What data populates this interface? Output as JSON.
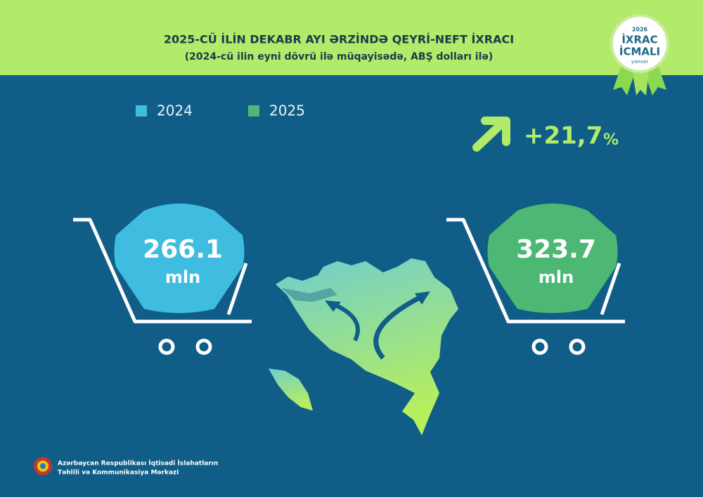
{
  "header": {
    "title": "2025-CÜ İLİN DEKABR AYI ƏRZİNDƏ QEYRİ-NEFT İXRACI",
    "subtitle": "(2024-cü ilin eyni dövrü ilə müqayisədə, ABŞ dolları ilə)"
  },
  "badge": {
    "year": "2026",
    "line1": "İXRAC",
    "line2": "İCMALI",
    "month": "yanvar"
  },
  "legend": [
    {
      "label": "2024",
      "color": "#3fbde0"
    },
    {
      "label": "2025",
      "color": "#4cb874"
    }
  ],
  "change": {
    "value": "+21,7",
    "unit": "%"
  },
  "carts": [
    {
      "value": "266.1",
      "unit": "mln",
      "color": "#3fbde0"
    },
    {
      "value": "323.7",
      "unit": "mln",
      "color": "#4cb874"
    }
  ],
  "footer": {
    "line1": "Azərbaycan Respublikası İqtisadi İslahatların",
    "line2": "Təhlili və Kommunikasiya Mərkəzi"
  }
}
